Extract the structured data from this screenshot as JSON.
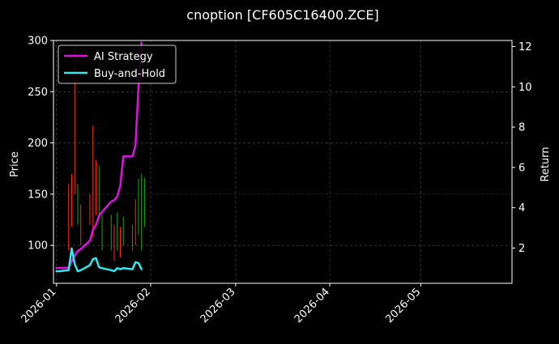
{
  "chart_data": {
    "type": "line",
    "title": "cnoption [CF605C16400.ZCE]",
    "ylabel_left": "Price",
    "ylabel_right": "Return",
    "ylim_left": [
      63,
      300
    ],
    "ylim_right": [
      0.25,
      12.3
    ],
    "xlim": [
      "2025-12-31",
      "2026-05-31"
    ],
    "x_ticks": [
      "2026-01",
      "2026-02",
      "2026-03",
      "2026-04",
      "2026-05"
    ],
    "y_ticks_left": [
      100,
      150,
      200,
      250,
      300
    ],
    "y_ticks_right": [
      2,
      4,
      6,
      8,
      10,
      12
    ],
    "grid": true,
    "legend_position": "upper-left",
    "colors": {
      "background": "#000000",
      "text": "#ffffff",
      "grid": "#555555",
      "ai_strategy": "#e010e0",
      "buy_and_hold": "#30e8f0",
      "candle_up": "#1fa01f",
      "candle_down": "#ff2a14"
    },
    "series": [
      {
        "name": "AI Strategy",
        "axis": "right",
        "points": [
          [
            "2026-01-01",
            1.01
          ],
          [
            "2026-01-02",
            1.01
          ],
          [
            "2026-01-05",
            1.02
          ],
          [
            "2026-01-06",
            1.35
          ],
          [
            "2026-01-07",
            1.62
          ],
          [
            "2026-01-08",
            1.85
          ],
          [
            "2026-01-09",
            1.95
          ],
          [
            "2026-01-12",
            2.37
          ],
          [
            "2026-01-13",
            2.9
          ],
          [
            "2026-01-14",
            3.15
          ],
          [
            "2026-01-15",
            3.6
          ],
          [
            "2026-01-16",
            3.8
          ],
          [
            "2026-01-19",
            4.3
          ],
          [
            "2026-01-20",
            4.38
          ],
          [
            "2026-01-21",
            4.55
          ],
          [
            "2026-01-22",
            5.1
          ],
          [
            "2026-01-23",
            6.55
          ],
          [
            "2026-01-26",
            6.55
          ],
          [
            "2026-01-27",
            7.1
          ],
          [
            "2026-01-28",
            10.0
          ],
          [
            "2026-01-29",
            12.2
          ]
        ]
      },
      {
        "name": "Buy-and-Hold",
        "axis": "right",
        "points": [
          [
            "2026-01-01",
            0.85
          ],
          [
            "2026-01-02",
            0.85
          ],
          [
            "2026-01-05",
            0.9
          ],
          [
            "2026-01-06",
            1.98
          ],
          [
            "2026-01-07",
            1.2
          ],
          [
            "2026-01-08",
            0.85
          ],
          [
            "2026-01-09",
            0.9
          ],
          [
            "2026-01-12",
            1.15
          ],
          [
            "2026-01-13",
            1.45
          ],
          [
            "2026-01-14",
            1.5
          ],
          [
            "2026-01-15",
            1.05
          ],
          [
            "2026-01-16",
            1.0
          ],
          [
            "2026-01-19",
            0.9
          ],
          [
            "2026-01-20",
            0.85
          ],
          [
            "2026-01-21",
            1.0
          ],
          [
            "2026-01-22",
            0.95
          ],
          [
            "2026-01-23",
            1.0
          ],
          [
            "2026-01-26",
            0.95
          ],
          [
            "2026-01-27",
            1.3
          ],
          [
            "2026-01-28",
            1.25
          ],
          [
            "2026-01-29",
            0.95
          ]
        ]
      }
    ],
    "candles": [
      {
        "date": "2026-01-05",
        "high": 160,
        "low": 95,
        "dir": "down"
      },
      {
        "date": "2026-01-06",
        "high": 170,
        "low": 118,
        "dir": "down"
      },
      {
        "date": "2026-01-07",
        "high": 295,
        "low": 150,
        "dir": "down"
      },
      {
        "date": "2026-01-08",
        "high": 160,
        "low": 120,
        "dir": "up"
      },
      {
        "date": "2026-01-09",
        "high": 140,
        "low": 100,
        "dir": "down"
      },
      {
        "date": "2026-01-12",
        "high": 150,
        "low": 120,
        "dir": "down"
      },
      {
        "date": "2026-01-13",
        "high": 217,
        "low": 108,
        "dir": "down"
      },
      {
        "date": "2026-01-14",
        "high": 183,
        "low": 130,
        "dir": "down"
      },
      {
        "date": "2026-01-15",
        "high": 178,
        "low": 125,
        "dir": "up"
      },
      {
        "date": "2026-01-16",
        "high": 130,
        "low": 95,
        "dir": "up"
      },
      {
        "date": "2026-01-19",
        "high": 130,
        "low": 95,
        "dir": "up"
      },
      {
        "date": "2026-01-20",
        "high": 120,
        "low": 85,
        "dir": "down"
      },
      {
        "date": "2026-01-21",
        "high": 132,
        "low": 95,
        "dir": "up"
      },
      {
        "date": "2026-01-22",
        "high": 118,
        "low": 88,
        "dir": "down"
      },
      {
        "date": "2026-01-23",
        "high": 128,
        "low": 100,
        "dir": "up"
      },
      {
        "date": "2026-01-26",
        "high": 120,
        "low": 95,
        "dir": "down"
      },
      {
        "date": "2026-01-27",
        "high": 145,
        "low": 100,
        "dir": "down"
      },
      {
        "date": "2026-01-28",
        "high": 165,
        "low": 110,
        "dir": "up"
      },
      {
        "date": "2026-01-29",
        "high": 170,
        "low": 95,
        "dir": "up"
      },
      {
        "date": "2026-01-30",
        "high": 166,
        "low": 118,
        "dir": "up"
      }
    ]
  }
}
